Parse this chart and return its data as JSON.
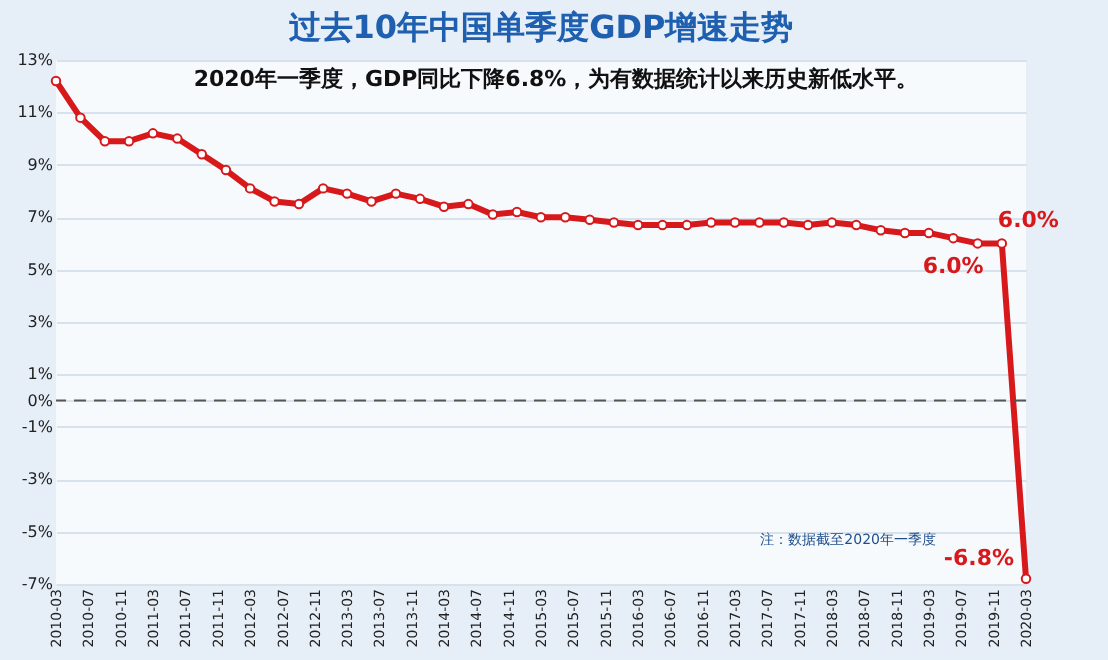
{
  "chart_data": {
    "type": "line",
    "title": "过去10年中国单季度GDP增速走势",
    "x": [
      "2010-03",
      "2010-06",
      "2010-09",
      "2010-12",
      "2011-03",
      "2011-06",
      "2011-09",
      "2011-12",
      "2012-03",
      "2012-06",
      "2012-09",
      "2012-12",
      "2013-03",
      "2013-06",
      "2013-09",
      "2013-12",
      "2014-03",
      "2014-06",
      "2014-09",
      "2014-12",
      "2015-03",
      "2015-06",
      "2015-09",
      "2015-12",
      "2016-03",
      "2016-06",
      "2016-09",
      "2016-12",
      "2017-03",
      "2017-06",
      "2017-09",
      "2017-12",
      "2018-03",
      "2018-06",
      "2018-09",
      "2018-12",
      "2019-03",
      "2019-06",
      "2019-09",
      "2019-12",
      "2020-03"
    ],
    "series": [
      {
        "color": "#d7191c",
        "values": [
          12.2,
          10.8,
          9.9,
          9.9,
          10.2,
          10.0,
          9.4,
          8.8,
          8.1,
          7.6,
          7.5,
          8.1,
          7.9,
          7.6,
          7.9,
          7.7,
          7.4,
          7.5,
          7.1,
          7.2,
          7.0,
          7.0,
          6.9,
          6.8,
          6.7,
          6.7,
          6.7,
          6.8,
          6.8,
          6.8,
          6.8,
          6.7,
          6.8,
          6.7,
          6.5,
          6.4,
          6.4,
          6.2,
          6.0,
          6.0,
          -6.8
        ],
        "value_labels": [
          null,
          null,
          null,
          null,
          null,
          null,
          null,
          null,
          null,
          null,
          null,
          null,
          null,
          null,
          null,
          null,
          null,
          null,
          null,
          null,
          null,
          null,
          null,
          null,
          null,
          null,
          null,
          null,
          null,
          null,
          null,
          null,
          null,
          null,
          null,
          null,
          null,
          null,
          "6.0%",
          "6.0%",
          "-6.8%"
        ]
      }
    ],
    "xlim": [
      "2010-03",
      "2020-03"
    ],
    "xticks": [
      "2010-03",
      "2010-07",
      "2010-11",
      "2011-03",
      "2011-07",
      "2011-11",
      "2012-03",
      "2012-07",
      "2012-11",
      "2013-03",
      "2013-07",
      "2013-11",
      "2014-03",
      "2014-07",
      "2014-11",
      "2015-03",
      "2015-07",
      "2015-11",
      "2016-03",
      "2016-07",
      "2016-11",
      "2017-03",
      "2017-07",
      "2017-11",
      "2018-03",
      "2018-07",
      "2018-11",
      "2019-03",
      "2019-07",
      "2019-11",
      "2020-03"
    ],
    "ylim": [
      -7,
      13
    ],
    "yticks": [
      {
        "value": 13,
        "label": "13%"
      },
      {
        "value": 11,
        "label": "11%"
      },
      {
        "value": 9,
        "label": "9%"
      },
      {
        "value": 7,
        "label": "7%"
      },
      {
        "value": 5,
        "label": "5%"
      },
      {
        "value": 3,
        "label": "3%"
      },
      {
        "value": 1,
        "label": "1%"
      },
      {
        "value": 0,
        "label": "0%"
      },
      {
        "value": -1,
        "label": "-1%"
      },
      {
        "value": -3,
        "label": "-3%"
      },
      {
        "value": -5,
        "label": "-5%"
      },
      {
        "value": -7,
        "label": "-7%"
      }
    ],
    "ref_lines": [
      {
        "axis": "y",
        "value": 0,
        "line_style": "dashed",
        "color": "#555555"
      }
    ],
    "annotations": [
      "2020年一季度，GDP同比下降6.8%，为有数据统计以来历史新低水平。",
      "注：数据截至2020年一季度"
    ],
    "grid": "y",
    "marker": "circle",
    "line_style": "solid"
  }
}
